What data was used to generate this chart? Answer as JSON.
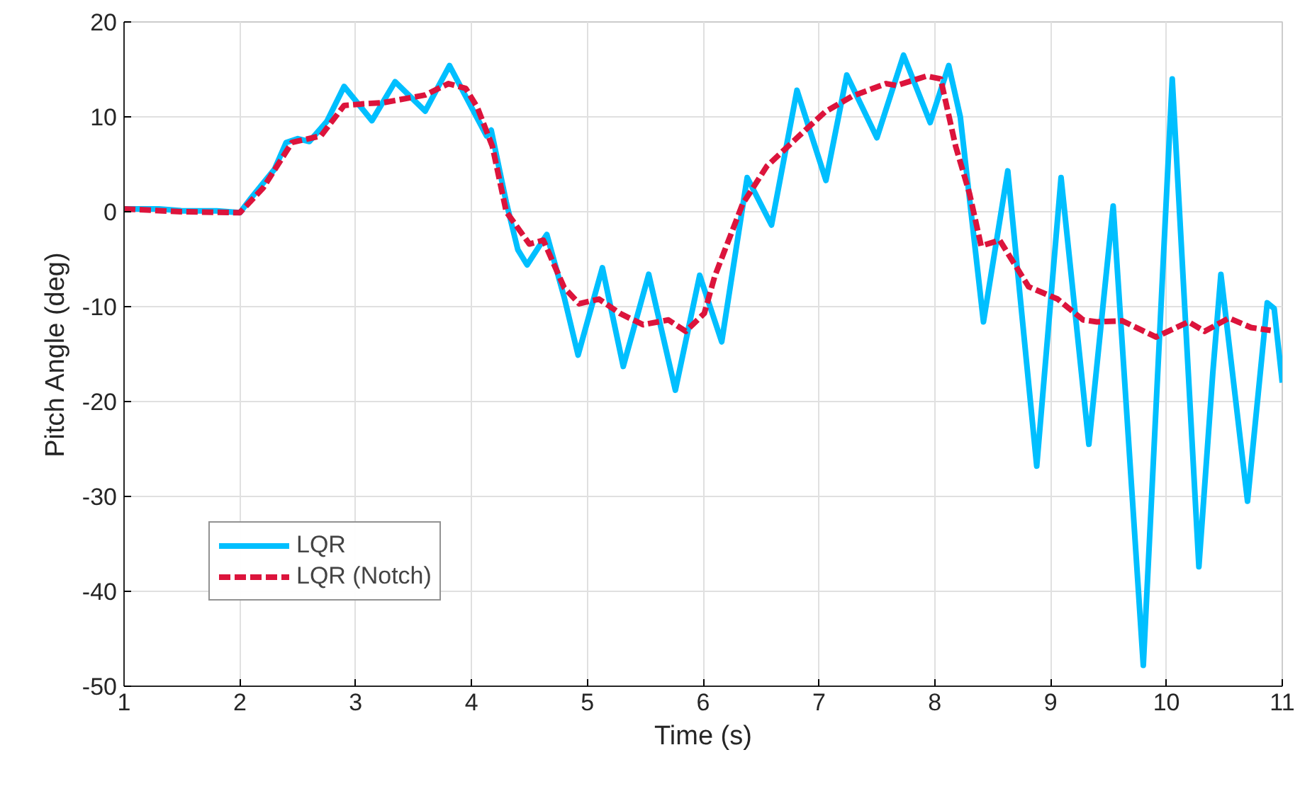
{
  "chart_data": {
    "type": "line",
    "xlabel": "Time (s)",
    "ylabel": "Pitch Angle (deg)",
    "xlim": [
      1,
      11
    ],
    "ylim": [
      -50,
      20
    ],
    "xticks": [
      1,
      2,
      3,
      4,
      5,
      6,
      7,
      8,
      9,
      10,
      11
    ],
    "yticks": [
      -50,
      -40,
      -30,
      -20,
      -10,
      0,
      10,
      20
    ],
    "grid": true,
    "legend": "bottom left",
    "line_style": "solid",
    "marker": "none",
    "series": [
      {
        "name": "LQR",
        "color": "#00bfff",
        "x": [
          1,
          1.3,
          1.5,
          1.8,
          2.0,
          2.1,
          2.3,
          2.4,
          2.5,
          2.6,
          2.75,
          2.9,
          3.14,
          3.34,
          3.6,
          3.81,
          4.0,
          4.13,
          4.17,
          4.3,
          4.4,
          4.48,
          4.65,
          4.8,
          4.92,
          5.13,
          5.31,
          5.53,
          5.76,
          5.97,
          6.16,
          6.38,
          6.59,
          6.81,
          7.06,
          7.24,
          7.5,
          7.73,
          7.96,
          8.12,
          8.22,
          8.42,
          8.63,
          8.88,
          9.09,
          9.33,
          9.54,
          9.8,
          10.05,
          10.28,
          10.4,
          10.47,
          10.7,
          10.87,
          10.93,
          11
        ],
        "values": [
          0.3,
          0.3,
          0.1,
          0.1,
          -0.1,
          1.5,
          4.5,
          7.3,
          7.7,
          7.4,
          9.5,
          13.2,
          9.6,
          13.7,
          10.6,
          15.4,
          11.0,
          8.0,
          8.6,
          1,
          -4,
          -5.6,
          -2.4,
          -9,
          -15.1,
          -5.9,
          -16.3,
          -6.6,
          -18.8,
          -6.7,
          -13.7,
          3.6,
          -1.4,
          12.8,
          3.3,
          14.4,
          7.8,
          16.5,
          9.4,
          15.4,
          10,
          -11.6,
          4.3,
          -26.8,
          3.6,
          -24.5,
          0.6,
          -47.8,
          14,
          -37.4,
          -17,
          -6.6,
          -30.5,
          -9.6,
          -10.2,
          -18
        ]
      },
      {
        "name": "LQR (Notch)",
        "color": "#dc143c",
        "line_style": "dashed",
        "x": [
          1,
          1.5,
          2.0,
          2.2,
          2.45,
          2.7,
          2.9,
          3.1,
          3.24,
          3.6,
          3.8,
          3.95,
          4.05,
          4.18,
          4.3,
          4.5,
          4.62,
          4.8,
          4.93,
          5.1,
          5.28,
          5.48,
          5.7,
          5.85,
          6.01,
          6.1,
          6.34,
          6.55,
          6.82,
          7.05,
          7.29,
          7.58,
          7.67,
          7.93,
          8.05,
          8.18,
          8.3,
          8.4,
          8.56,
          8.81,
          9.06,
          9.28,
          9.4,
          9.62,
          9.91,
          10.19,
          10.33,
          10.54,
          10.73,
          10.9
        ],
        "values": [
          0.3,
          0.0,
          -0.1,
          2.5,
          7.3,
          8,
          11.2,
          11.4,
          11.5,
          12.3,
          13.5,
          13.0,
          11,
          6.9,
          0,
          -3.4,
          -3.0,
          -8,
          -9.7,
          -9.2,
          -10.7,
          -11.9,
          -11.4,
          -12.6,
          -10.7,
          -6.8,
          0.8,
          4.8,
          7.9,
          10.5,
          12.2,
          13.5,
          13.3,
          14.3,
          14.0,
          6.9,
          1.9,
          -3.6,
          -3.0,
          -7.9,
          -9.2,
          -11.4,
          -11.6,
          -11.5,
          -13.2,
          -11.6,
          -12.6,
          -11.2,
          -12.2,
          -12.5
        ]
      }
    ]
  }
}
